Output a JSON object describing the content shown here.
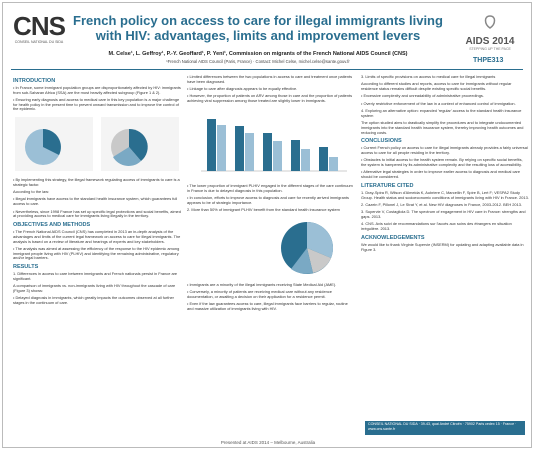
{
  "header": {
    "logo_left": "CNS",
    "logo_left_sub": "CONSEIL NATIONAL DU SIDA",
    "title": "French policy on access to care for illegal immigrants living with HIV: advantages, limits and improvement levers",
    "logo_right": "AIDS 2014",
    "logo_right_sub": "STEPPING UP THE PACE",
    "authors": "M. Celse¹, L. Geffroy¹, P.-Y. Geoffard¹, P. Yeni¹, Commission on migrants of the French National AIDS Council (CNS)",
    "affiliation": "¹French National AIDS Council (Paris, France) · Contact: Michel Celse, michel.celse@sante.gouv.fr",
    "code": "THPE313"
  },
  "columns": [
    {
      "blocks": [
        {
          "heading": "INTRODUCTION",
          "paragraphs": [
            "• In France, some immigrant population groups are disproportionately affected by HIV: immigrants from sub-Saharan Africa (SSA) are the most heavily affected subgroup (Figure 1 & 2).",
            "• Ensuring early diagnosis and access to medical care in this key population is a major challenge for health policy in the present time to prevent onward transmission and to improve the control of the epidemic."
          ],
          "figure": "pies"
        },
        {
          "paragraphs": [
            "• By implementing this strategy, the illegal framework regulating access of immigrants to care is a strategic factor.",
            "According to the law:",
            "• Illegal immigrants have access to the standard health insurance system, which guarantees full access to care.",
            "• Nevertheless, since 1998 France has set up specific legal protections and social benefits, aimed at providing access to medical care for immigrants living illegally in the territory."
          ]
        },
        {
          "heading": "OBJECTIVES AND METHODS",
          "paragraphs": [
            "• The French National AIDS Council (CNS) has completed in 2013 an in-depth analysis of the advantages and limits of the current legal framework on access to care for illegal immigrants. The analysis is based on a review of literature and hearings of experts and key stakeholders.",
            "• The analysis was aimed at assessing the efficiency of the response to the HIV epidemic among immigrant people living with HIV (PLHIV) and identifying the remaining administrative, regulatory and/or legal barriers."
          ]
        },
        {
          "heading": "RESULTS",
          "paragraphs": [
            "1. Differences in access to care between immigrants and French nationals persist in France are significant.",
            "A comparison of immigrants vs. non-immigrants living with HIV throughout the cascade of care (Figure 3) shows:",
            "• Delayed diagnosis in immigrants, which greatly impacts the outcomes observed at all further stages in the continuum of care."
          ]
        }
      ]
    },
    {
      "blocks": [
        {
          "paragraphs": [
            "• Limited differences between the two populations in access to care and treatment once patients have been diagnosed.",
            "• Linkage to care after diagnosis appears to be equally effective.",
            "• However, the proportion of patients on ARV among those in care and the proportion of patients achieving viral suppression among those treated are slightly lower in immigrants."
          ],
          "figure": "bars"
        },
        {
          "paragraphs": [
            "• The lower proportion of immigrant PLHIV engaged in the different stages of the care continuum in France is due to delayed diagnosis in this population.",
            "• In conclusion, efforts to improve access to diagnosis and care for recently arrived immigrants appears to be of strategic importance."
          ]
        },
        {
          "paragraphs": [
            "2. More than 50% of immigrant PLHIV benefit from the standard health insurance system"
          ],
          "figure": "pie"
        },
        {
          "paragraphs": [
            "• Immigrants are a minority of the illegal immigrants receiving State Medical Aid (AME).",
            "• Conversely, a minority of patients are receiving medical care without any residence documentation, or awaiting a decision on their application for a residence permit.",
            "• Even if the law guarantees access to care, illegal immigrants face barriers to regular, routine and massive utilization of immigrants living with HIV."
          ]
        }
      ]
    },
    {
      "blocks": [
        {
          "paragraphs": [
            "3. Limits of specific provisions on access to medical care for illegal immigrants",
            "According to different studies and reports, access to care for immigrants without regular residence status remains difficult despite existing specific social benefits.",
            "• Excessive complexity and unreadability of administrative proceedings.",
            "• Overly restrictive enforcement of the law in a context of enhanced control of immigration."
          ]
        },
        {
          "paragraphs": [
            "4. Exploring an alternative option: expanded 'regular' access to the standard health insurance system",
            "The option studied aims to drastically simplify the procedures and to integrate undocumented immigrants into the standard health insurance system, thereby improving health outcomes and reducing costs."
          ]
        },
        {
          "heading": "CONCLUSIONS",
          "paragraphs": [
            "• Current French policy on access to care for illegal immigrants already provides a fairly universal access to care for all people residing in the territory.",
            "• Obstacles to initial access to the health system remain. By relying on specific social benefits, the system is hampered by its administrative complexity and the resulting loss of accessibility.",
            "• Alternative legal strategies in order to improve earlier access to diagnosis and medical care should be considered."
          ]
        },
        {
          "heading": "LITERATURE CITED",
          "paragraphs": [
            "1. Dray-Spira R, Wilson d'Almeida K, Aubriere C, Marcellin F, Spire B, Lert F; VESPA2 Study Group. Health status and socioeconomic conditions of immigrants living with HIV in France. 2013.",
            "2. Cazein F, Pillonel J, Le Strat Y, et al. New HIV diagnoses in France, 2003-2012. BEH 2013.",
            "3. Supervie V, Costagliola D. The spectrum of engagement in HIV care in France: strengths and gaps. 2013.",
            "4. CNS. Avis suivi de recommandations sur l'accès aux soins des étrangers en situation irrégulière. 2013."
          ]
        },
        {
          "heading": "ACKNOWLEDGEMENTS",
          "paragraphs": [
            "We would like to thank Virginie Supervie (INSERM) for updating and adapting available data in Figure 3."
          ]
        }
      ]
    }
  ],
  "contact_box": "CONSEIL NATIONAL DU SIDA · 39-43, quai André Citroën · 75902 Paris cedex 15 · France · www.cns.sante.fr",
  "footer": "Presented at AIDS 2014 – Melbourne, Australia"
}
